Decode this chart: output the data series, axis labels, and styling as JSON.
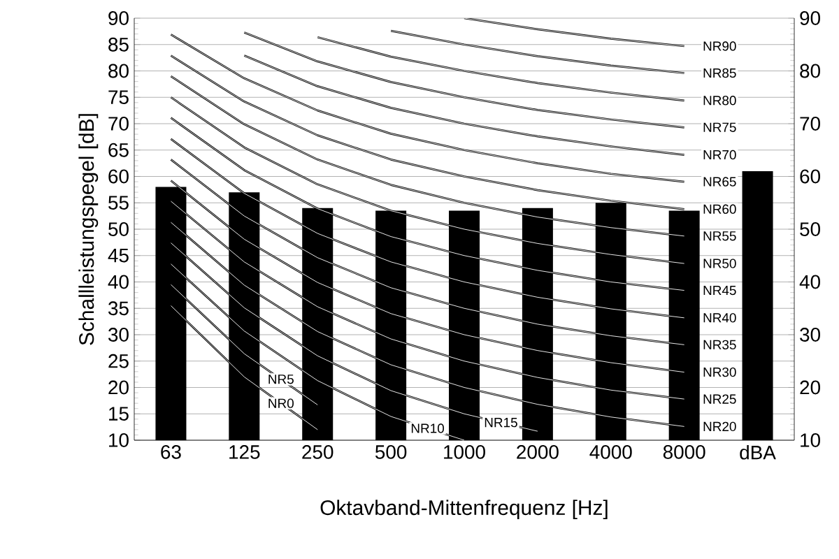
{
  "chart_data": {
    "type": "bar",
    "xlabel": "Oktavband-Mittenfrequenz [Hz]",
    "ylabel": "Schallleistungspegel [dB]",
    "categories": [
      "63",
      "125",
      "250",
      "500",
      "1000",
      "2000",
      "4000",
      "8000",
      "dBA"
    ],
    "ylim": [
      10,
      90
    ],
    "yticks": [
      10,
      15,
      20,
      25,
      30,
      35,
      40,
      45,
      50,
      55,
      60,
      65,
      70,
      75,
      80,
      85,
      90
    ],
    "y2lim": [
      10,
      90
    ],
    "y2ticks": [
      10,
      20,
      30,
      40,
      50,
      60,
      70,
      80,
      90
    ],
    "grid": "y",
    "line_style": "solid",
    "series": [
      {
        "color": "#000000",
        "values": [
          58,
          57,
          54,
          53.5,
          53.5,
          54,
          55,
          53.5,
          61
        ]
      },
      {
        "type": "line",
        "name": "NR0",
        "color": "#000000",
        "values": [
          35.5,
          22.0,
          12.0,
          null,
          null,
          null,
          null,
          null,
          null
        ]
      },
      {
        "type": "line",
        "name": "NR5",
        "color": "#000000",
        "values": [
          39.5,
          26.4,
          16.7,
          null,
          null,
          null,
          null,
          null,
          null
        ]
      },
      {
        "type": "line",
        "name": "NR10",
        "color": "#000000",
        "values": [
          43.4,
          30.7,
          21.3,
          14.5,
          10.0,
          null,
          null,
          null,
          null
        ]
      },
      {
        "type": "line",
        "name": "NR15",
        "color": "#000000",
        "values": [
          47.4,
          35.1,
          26.0,
          19.4,
          15.0,
          11.7,
          null,
          null,
          null
        ]
      },
      {
        "type": "line",
        "name": "NR20",
        "color": "#000000",
        "values": [
          51.3,
          39.4,
          30.6,
          24.3,
          20.0,
          16.8,
          14.4,
          12.6,
          null
        ]
      },
      {
        "type": "line",
        "name": "NR25",
        "color": "#000000",
        "values": [
          55.3,
          43.8,
          35.3,
          29.2,
          25.0,
          21.9,
          19.5,
          17.8,
          null
        ]
      },
      {
        "type": "line",
        "name": "NR30",
        "color": "#000000",
        "values": [
          59.2,
          48.1,
          39.9,
          34.0,
          30.0,
          27.0,
          24.7,
          22.9,
          null
        ]
      },
      {
        "type": "line",
        "name": "NR35",
        "color": "#000000",
        "values": [
          63.2,
          52.5,
          44.6,
          38.9,
          35.0,
          32.0,
          29.8,
          28.1,
          null
        ]
      },
      {
        "type": "line",
        "name": "NR40",
        "color": "#000000",
        "values": [
          67.1,
          56.8,
          49.2,
          43.8,
          40.0,
          37.1,
          34.9,
          33.2,
          null
        ]
      },
      {
        "type": "line",
        "name": "NR45",
        "color": "#000000",
        "values": [
          71.1,
          61.2,
          53.9,
          48.6,
          45.0,
          42.2,
          40.0,
          38.4,
          null
        ]
      },
      {
        "type": "line",
        "name": "NR50",
        "color": "#000000",
        "values": [
          75.0,
          65.5,
          58.5,
          53.5,
          50.0,
          47.3,
          45.2,
          43.5,
          null
        ]
      },
      {
        "type": "line",
        "name": "NR55",
        "color": "#000000",
        "values": [
          79.0,
          69.9,
          63.2,
          58.4,
          55.0,
          52.3,
          50.3,
          48.7,
          null
        ]
      },
      {
        "type": "line",
        "name": "NR60",
        "color": "#000000",
        "values": [
          82.9,
          74.2,
          67.8,
          63.2,
          60.0,
          57.4,
          55.4,
          53.8,
          null
        ]
      },
      {
        "type": "line",
        "name": "NR65",
        "color": "#000000",
        "values": [
          86.9,
          78.6,
          72.5,
          68.1,
          65.0,
          62.5,
          60.5,
          59.0,
          null
        ]
      },
      {
        "type": "line",
        "name": "NR70",
        "color": "#000000",
        "values": [
          null,
          82.9,
          77.1,
          73.0,
          70.0,
          67.6,
          65.7,
          64.1,
          null
        ]
      },
      {
        "type": "line",
        "name": "NR75",
        "color": "#000000",
        "values": [
          null,
          87.3,
          81.8,
          77.9,
          75.0,
          72.6,
          70.8,
          69.3,
          null
        ]
      },
      {
        "type": "line",
        "name": "NR80",
        "color": "#000000",
        "values": [
          null,
          null,
          86.4,
          82.7,
          80.0,
          77.7,
          75.9,
          74.4,
          null
        ]
      },
      {
        "type": "line",
        "name": "NR85",
        "color": "#000000",
        "values": [
          null,
          null,
          null,
          87.6,
          85.0,
          82.8,
          81.0,
          79.6,
          null
        ]
      },
      {
        "type": "line",
        "name": "NR90",
        "color": "#000000",
        "values": [
          null,
          null,
          null,
          null,
          90.0,
          87.9,
          86.1,
          84.7,
          null
        ]
      }
    ]
  }
}
